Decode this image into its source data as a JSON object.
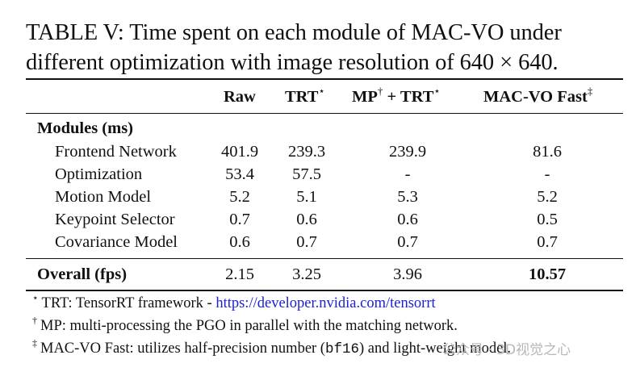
{
  "caption": {
    "line1": "TABLE V: Time spent on each module of MAC-VO under",
    "line2": "different optimization with image resolution of 640 × 640."
  },
  "table": {
    "headers": {
      "raw": "Raw",
      "trt": "TRT",
      "trt_mark": "⋆",
      "mp": "MP",
      "mp_mark": "†",
      "mp_trt": " + TRT",
      "mp_trt_mark": "⋆",
      "fast": "MAC-VO Fast",
      "fast_mark": "‡"
    },
    "section_label": "Modules (ms)",
    "rows": [
      {
        "module": "Frontend Network",
        "raw": "401.9",
        "trt": "239.3",
        "mp_trt": "239.9",
        "fast": "81.6"
      },
      {
        "module": "Optimization",
        "raw": "53.4",
        "trt": "57.5",
        "mp_trt": "-",
        "fast": "-"
      },
      {
        "module": "Motion Model",
        "raw": "5.2",
        "trt": "5.1",
        "mp_trt": "5.3",
        "fast": "5.2"
      },
      {
        "module": "Keypoint Selector",
        "raw": "0.7",
        "trt": "0.6",
        "mp_trt": "0.6",
        "fast": "0.5"
      },
      {
        "module": "Covariance Model",
        "raw": "0.6",
        "trt": "0.7",
        "mp_trt": "0.7",
        "fast": "0.7"
      }
    ],
    "overall": {
      "label": "Overall (fps)",
      "raw": "2.15",
      "trt": "3.25",
      "mp_trt": "3.96",
      "fast": "10.57"
    }
  },
  "footnotes": {
    "f1_mark": "⋆",
    "f1_text": "TRT: TensorRT framework - ",
    "f1_link": "https://developer.nvidia.com/tensorrt",
    "f2_mark": "†",
    "f2_text": "MP: multi-processing the PGO in parallel with the matching network.",
    "f3_mark": "‡",
    "f3_text_a": "MAC-VO Fast: utilizes half-precision number (",
    "f3_code": "bf16",
    "f3_text_b": ") and light-weight model.",
    "watermark": "公众号 · 3D视觉之心"
  }
}
